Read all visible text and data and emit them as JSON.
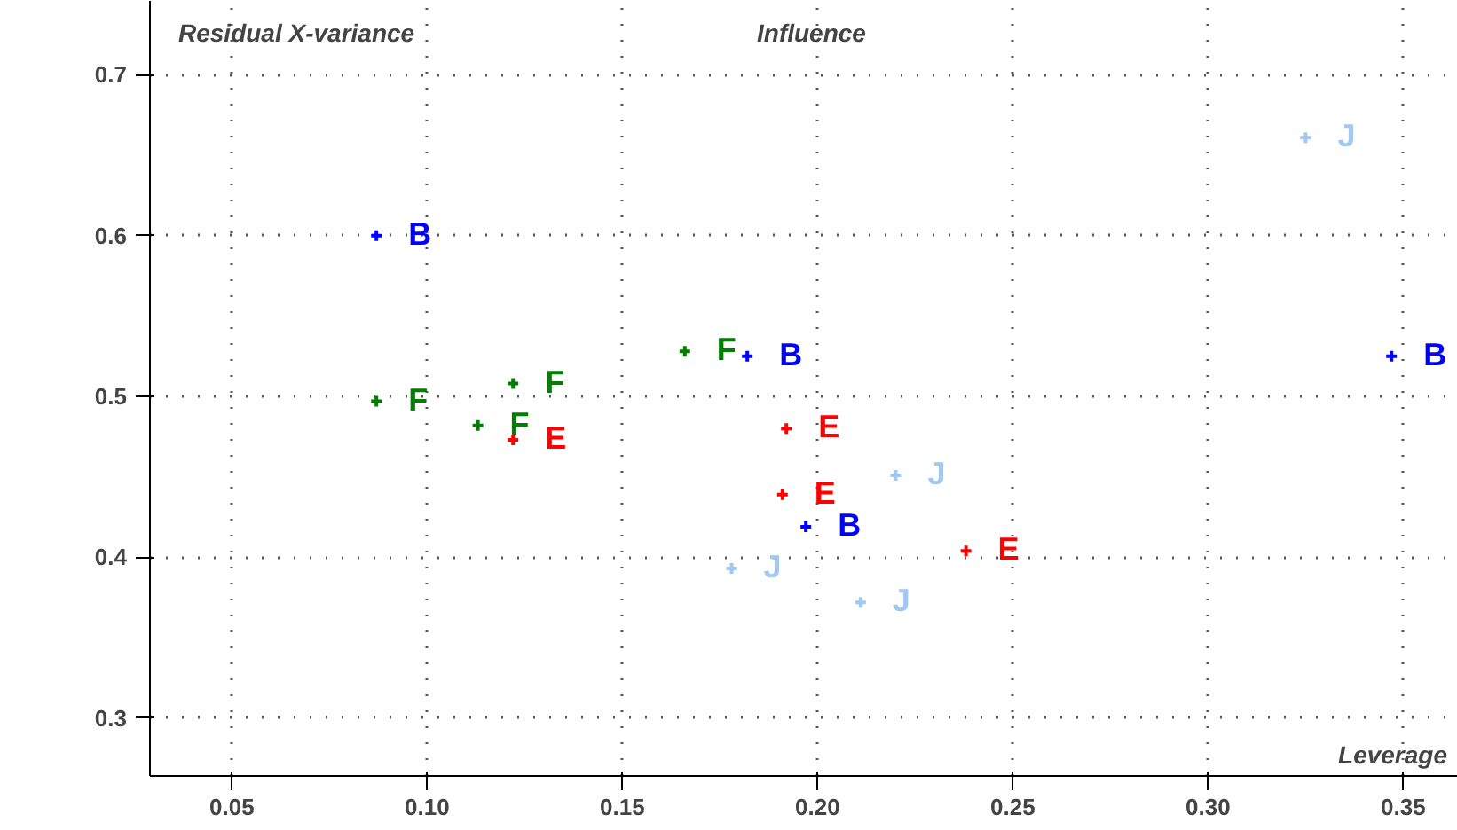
{
  "chart_data": {
    "type": "scatter",
    "xlabel": "Leverage",
    "annotations": [
      "Residual X-variance",
      "Influence"
    ],
    "series": [
      {
        "name": "B",
        "color": "#0000ff",
        "x": [
          0.087,
          0.182,
          0.197,
          0.347
        ],
        "values": [
          0.6,
          0.525,
          0.419,
          0.525
        ]
      },
      {
        "name": "F",
        "color": "#008000",
        "x": [
          0.087,
          0.113,
          0.122,
          0.166
        ],
        "values": [
          0.497,
          0.482,
          0.508,
          0.528
        ]
      },
      {
        "name": "E",
        "color": "#ff0000",
        "x": [
          0.122,
          0.192,
          0.191,
          0.238
        ],
        "values": [
          0.473,
          0.48,
          0.439,
          0.404
        ]
      },
      {
        "name": "J",
        "color": "#a0c8f0",
        "x": [
          0.22,
          0.178,
          0.211,
          0.325
        ],
        "values": [
          0.451,
          0.393,
          0.372,
          0.661
        ]
      }
    ],
    "xlim": [
      0.029,
      0.364
    ],
    "ylim": [
      0.264,
      0.746
    ],
    "xticks": [
      {
        "value": 0.05,
        "label": "0.05"
      },
      {
        "value": 0.1,
        "label": "0.10"
      },
      {
        "value": 0.15,
        "label": "0.15"
      },
      {
        "value": 0.2,
        "label": "0.20"
      },
      {
        "value": 0.25,
        "label": "0.25"
      },
      {
        "value": 0.3,
        "label": "0.30"
      },
      {
        "value": 0.35,
        "label": "0.35"
      }
    ],
    "yticks": [
      0.3,
      0.4,
      0.5,
      0.6,
      0.7
    ],
    "grid": true,
    "marker": "cross"
  }
}
